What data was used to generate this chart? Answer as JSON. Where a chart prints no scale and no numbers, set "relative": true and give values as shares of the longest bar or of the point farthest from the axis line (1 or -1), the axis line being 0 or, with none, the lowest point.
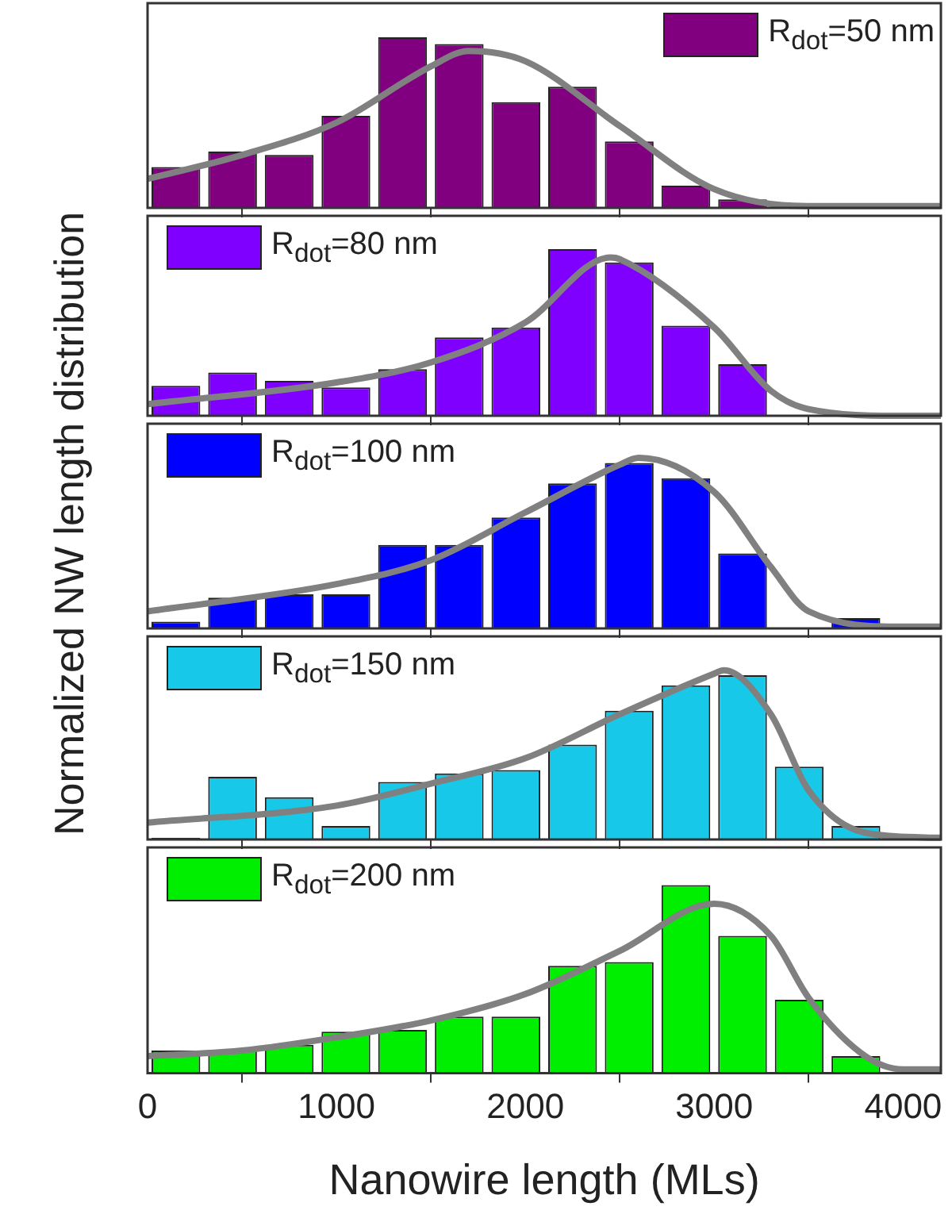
{
  "chart_data": [
    {
      "type": "histogram",
      "ylabel": "Normalized NW length distribution",
      "relative": true,
      "legend": "top right",
      "grid": false,
      "tick_labels": false,
      "marker": "none",
      "xlim": [
        0,
        4200
      ],
      "xticks": [
        0,
        1000,
        2000,
        3000,
        4000
      ],
      "bins": [
        0,
        300,
        600,
        900,
        1200,
        1500,
        1800,
        2100,
        2400,
        2700,
        3000,
        3300,
        3600,
        3900
      ],
      "series": [
        {
          "name": "R$_{dot}$=50 nm",
          "color": "#800080",
          "values": [
            0.24,
            0.33,
            0.31,
            0.54,
            1,
            0.96,
            0.62,
            0.71,
            0.39,
            0.13,
            0.05,
            0,
            0
          ]
        },
        {
          "type": "line",
          "color": "#808080",
          "x": [
            0,
            500,
            1000,
            1500,
            1700,
            2000,
            2500,
            3000,
            3500,
            4000,
            4200
          ],
          "values": [
            0.17,
            0.31,
            0.5,
            0.83,
            0.92,
            0.86,
            0.48,
            0.11,
            0.01,
            0.01,
            0.01
          ]
        }
      ]
    },
    {
      "type": "histogram",
      "relative": true,
      "legend": "top left",
      "grid": false,
      "tick_labels": false,
      "marker": "none",
      "xlim": [
        0,
        4200
      ],
      "xticks": [
        0,
        1000,
        2000,
        3000,
        4000
      ],
      "bins": [
        0,
        300,
        600,
        900,
        1200,
        1500,
        1800,
        2100,
        2400,
        2700,
        3000,
        3300,
        3600,
        3900
      ],
      "series": [
        {
          "name": "R$_{dot}$=80 nm",
          "color": "#8000ff",
          "values": [
            0.18,
            0.26,
            0.21,
            0.17,
            0.28,
            0.47,
            0.53,
            1,
            0.92,
            0.54,
            0.31,
            0,
            0
          ]
        },
        {
          "type": "line",
          "color": "#808080",
          "x": [
            0,
            1000,
            1500,
            2000,
            2450,
            2500,
            3000,
            3300,
            3500,
            4000,
            4200
          ],
          "values": [
            0.07,
            0.2,
            0.32,
            0.56,
            0.95,
            0.94,
            0.53,
            0.15,
            0.04,
            0,
            0
          ]
        }
      ]
    },
    {
      "type": "histogram",
      "relative": true,
      "legend": "top left",
      "grid": false,
      "tick_labels": false,
      "marker": "none",
      "xlim": [
        0,
        4200
      ],
      "xticks": [
        0,
        1000,
        2000,
        3000,
        4000
      ],
      "bins": [
        0,
        300,
        600,
        900,
        1200,
        1500,
        1800,
        2100,
        2400,
        2700,
        3000,
        3300,
        3600,
        3900
      ],
      "series": [
        {
          "name": "R$_{dot}$=100 nm",
          "color": "#0000ff",
          "values": [
            0.04,
            0.18,
            0.2,
            0.2,
            0.49,
            0.49,
            0.65,
            0.85,
            0.97,
            0.88,
            0.44,
            0,
            0.06
          ]
        },
        {
          "type": "line",
          "color": "#808080",
          "x": [
            0,
            1000,
            1500,
            2000,
            2500,
            2600,
            3000,
            3300,
            3500,
            4000,
            4200
          ],
          "values": [
            0.1,
            0.26,
            0.4,
            0.68,
            0.96,
            1,
            0.8,
            0.36,
            0.1,
            0.01,
            0.01
          ]
        }
      ]
    },
    {
      "type": "histogram",
      "relative": true,
      "legend": "top left",
      "grid": false,
      "tick_labels": false,
      "marker": "none",
      "xlim": [
        0,
        4200
      ],
      "xticks": [
        0,
        1000,
        2000,
        3000,
        4000
      ],
      "bins": [
        0,
        300,
        600,
        900,
        1200,
        1500,
        1800,
        2100,
        2400,
        2700,
        3000,
        3300,
        3600,
        3900
      ],
      "series": [
        {
          "name": "R$_{dot}$=150 nm",
          "color": "#18c8e8",
          "values": [
            0.01,
            0.37,
            0.25,
            0.08,
            0.34,
            0.39,
            0.41,
            0.56,
            0.76,
            0.91,
            0.97,
            0.43,
            0.08
          ]
        },
        {
          "type": "line",
          "color": "#808080",
          "x": [
            0,
            1000,
            1500,
            2000,
            2500,
            3000,
            3050,
            3300,
            3500,
            3800,
            4200
          ],
          "values": [
            0.1,
            0.2,
            0.33,
            0.48,
            0.74,
            0.98,
            1,
            0.74,
            0.29,
            0.04,
            0.01
          ]
        }
      ]
    },
    {
      "type": "histogram",
      "xlabel": "Nanowire length (MLs)",
      "relative": true,
      "legend": "top left",
      "grid": false,
      "tick_labels": "x",
      "marker": "none",
      "xlim": [
        0,
        4200
      ],
      "xticks": [
        0,
        1000,
        2000,
        3000,
        4000
      ],
      "bins": [
        0,
        300,
        600,
        900,
        1200,
        1500,
        1800,
        2100,
        2400,
        2700,
        3000,
        3300,
        3600,
        3900
      ],
      "series": [
        {
          "name": "R$_{dot}$=200 nm",
          "color": "#00ee00",
          "values": [
            0.12,
            0.12,
            0.15,
            0.22,
            0.23,
            0.3,
            0.3,
            0.57,
            0.59,
            1,
            0.73,
            0.39,
            0.09
          ]
        },
        {
          "type": "line",
          "color": "#808080",
          "x": [
            0,
            500,
            1000,
            1500,
            2000,
            2500,
            3000,
            3300,
            3500,
            3800,
            4000,
            4200
          ],
          "values": [
            0.09,
            0.12,
            0.19,
            0.28,
            0.42,
            0.65,
            0.9,
            0.73,
            0.4,
            0.09,
            0.02,
            0.02
          ]
        }
      ]
    }
  ]
}
